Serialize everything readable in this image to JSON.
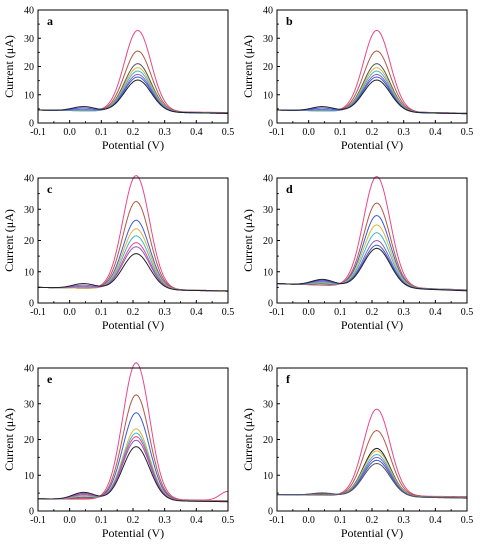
{
  "figure": {
    "background": "#ffffff"
  },
  "chart_data": [
    {
      "panel": "a",
      "type": "line",
      "xlabel": "Potential (V)",
      "ylabel": "Current (μA)",
      "xlim": [
        -0.1,
        0.5
      ],
      "ylim": [
        0,
        40
      ],
      "xticks": [
        "-0.1",
        "0.0",
        "0.1",
        "0.2",
        "0.3",
        "0.4",
        "0.5"
      ],
      "yticks": [
        "0",
        "10",
        "20",
        "30",
        "40"
      ],
      "peak_potential": 0.215,
      "series": [
        {
          "color": "#e8488b",
          "peak": 32.8,
          "base_left": 4.6,
          "base_right": 3.7,
          "shoulder": 0
        },
        {
          "color": "#b05a45",
          "peak": 25.5,
          "base_left": 4.6,
          "base_right": 3.6,
          "shoulder": 0
        },
        {
          "color": "#55555a",
          "peak": 21.0,
          "base_left": 4.6,
          "base_right": 3.5,
          "shoulder": 0
        },
        {
          "color": "#d6b83a",
          "peak": 19.6,
          "base_left": 4.6,
          "base_right": 3.5,
          "shoulder": 0
        },
        {
          "color": "#3fb7c9",
          "peak": 18.4,
          "base_left": 4.6,
          "base_right": 3.5,
          "shoulder": 0
        },
        {
          "color": "#8b5fc8",
          "peak": 17.2,
          "base_left": 4.6,
          "base_right": 3.4,
          "shoulder": 0.5
        },
        {
          "color": "#3b5bd9",
          "peak": 16.3,
          "base_left": 4.6,
          "base_right": 3.4,
          "shoulder": 1.0
        },
        {
          "color": "#222222",
          "peak": 15.2,
          "base_left": 4.6,
          "base_right": 3.4,
          "shoulder": 1.5
        }
      ]
    },
    {
      "panel": "b",
      "type": "line",
      "xlabel": "Potential (V)",
      "ylabel": "Current (μA)",
      "xlim": [
        -0.1,
        0.5
      ],
      "ylim": [
        0,
        40
      ],
      "xticks": [
        "-0.1",
        "0.0",
        "0.1",
        "0.2",
        "0.3",
        "0.4",
        "0.5"
      ],
      "yticks": [
        "0",
        "10",
        "20",
        "30",
        "40"
      ],
      "peak_potential": 0.215,
      "series": [
        {
          "color": "#e8488b",
          "peak": 32.8,
          "base_left": 4.6,
          "base_right": 3.5,
          "shoulder": 0
        },
        {
          "color": "#b05a45",
          "peak": 25.5,
          "base_left": 4.6,
          "base_right": 3.5,
          "shoulder": 0
        },
        {
          "color": "#55555a",
          "peak": 21.0,
          "base_left": 4.6,
          "base_right": 3.4,
          "shoulder": 0
        },
        {
          "color": "#d6b83a",
          "peak": 19.6,
          "base_left": 4.6,
          "base_right": 3.4,
          "shoulder": 0
        },
        {
          "color": "#3fb7c9",
          "peak": 18.4,
          "base_left": 4.6,
          "base_right": 3.4,
          "shoulder": 0
        },
        {
          "color": "#8b5fc8",
          "peak": 17.2,
          "base_left": 4.6,
          "base_right": 3.3,
          "shoulder": 0.5
        },
        {
          "color": "#3b5bd9",
          "peak": 16.3,
          "base_left": 4.6,
          "base_right": 3.3,
          "shoulder": 1.0
        },
        {
          "color": "#222222",
          "peak": 15.2,
          "base_left": 4.6,
          "base_right": 3.3,
          "shoulder": 1.5
        }
      ]
    },
    {
      "panel": "c",
      "type": "line",
      "xlabel": "Potential (V)",
      "ylabel": "Current (μA)",
      "xlim": [
        -0.1,
        0.5
      ],
      "ylim": [
        0,
        40
      ],
      "xticks": [
        "-0.1",
        "0.0",
        "0.1",
        "0.2",
        "0.3",
        "0.4",
        "0.5"
      ],
      "yticks": [
        "0",
        "10",
        "20",
        "30",
        "40"
      ],
      "peak_potential": 0.21,
      "series": [
        {
          "color": "#e8488b",
          "peak": 40.8,
          "base_left": 5.0,
          "base_right": 3.9,
          "shoulder": 0
        },
        {
          "color": "#b05a45",
          "peak": 32.5,
          "base_left": 5.0,
          "base_right": 3.9,
          "shoulder": 0
        },
        {
          "color": "#3b5bd9",
          "peak": 26.5,
          "base_left": 5.0,
          "base_right": 3.9,
          "shoulder": 0
        },
        {
          "color": "#d6b83a",
          "peak": 23.8,
          "base_left": 5.0,
          "base_right": 3.9,
          "shoulder": 0
        },
        {
          "color": "#3fb7c9",
          "peak": 21.5,
          "base_left": 5.0,
          "base_right": 3.8,
          "shoulder": 0.3
        },
        {
          "color": "#e8488b",
          "peak": 19.3,
          "base_left": 5.0,
          "base_right": 3.8,
          "shoulder": 0.6
        },
        {
          "color": "#8b5fc8",
          "peak": 18.0,
          "base_left": 5.0,
          "base_right": 3.8,
          "shoulder": 1.0
        },
        {
          "color": "#222222",
          "peak": 15.8,
          "base_left": 5.0,
          "base_right": 3.8,
          "shoulder": 1.5
        }
      ]
    },
    {
      "panel": "d",
      "type": "line",
      "xlabel": "Potential (V)",
      "ylabel": "Current (μA)",
      "xlim": [
        -0.1,
        0.5
      ],
      "ylim": [
        0,
        40
      ],
      "xticks": [
        "-0.1",
        "0.0",
        "0.1",
        "0.2",
        "0.3",
        "0.4",
        "0.5"
      ],
      "yticks": [
        "0",
        "10",
        "20",
        "30",
        "40"
      ],
      "peak_potential": 0.215,
      "series": [
        {
          "color": "#e8488b",
          "peak": 40.5,
          "base_left": 6.2,
          "base_right": 4.2,
          "shoulder": 0
        },
        {
          "color": "#b05a45",
          "peak": 32.0,
          "base_left": 6.2,
          "base_right": 4.2,
          "shoulder": 0
        },
        {
          "color": "#3b5bd9",
          "peak": 28.0,
          "base_left": 6.2,
          "base_right": 4.1,
          "shoulder": 0.5
        },
        {
          "color": "#d6b83a",
          "peak": 25.0,
          "base_left": 6.2,
          "base_right": 4.1,
          "shoulder": 0.7
        },
        {
          "color": "#3fb7c9",
          "peak": 22.5,
          "base_left": 6.2,
          "base_right": 4.0,
          "shoulder": 1.0
        },
        {
          "color": "#8b5fc8",
          "peak": 20.0,
          "base_left": 6.2,
          "base_right": 4.0,
          "shoulder": 1.3
        },
        {
          "color": "#3b5bd9",
          "peak": 18.5,
          "base_left": 6.2,
          "base_right": 4.0,
          "shoulder": 1.6
        },
        {
          "color": "#222222",
          "peak": 17.5,
          "base_left": 6.2,
          "base_right": 3.9,
          "shoulder": 1.9
        }
      ]
    },
    {
      "panel": "e",
      "type": "line",
      "xlabel": "Potential (V)",
      "ylabel": "Current (μA)",
      "xlim": [
        -0.1,
        0.5
      ],
      "ylim": [
        0,
        40
      ],
      "xticks": [
        "-0.1",
        "0.0",
        "0.1",
        "0.2",
        "0.3",
        "0.4",
        "0.5"
      ],
      "yticks": [
        "0",
        "10",
        "20",
        "30",
        "40"
      ],
      "peak_potential": 0.21,
      "series": [
        {
          "color": "#e8488b",
          "peak": 41.5,
          "base_left": 3.4,
          "base_right": 3.0,
          "shoulder": 0,
          "tail_up": 2.5
        },
        {
          "color": "#b05a45",
          "peak": 32.5,
          "base_left": 3.4,
          "base_right": 2.9,
          "shoulder": 0.3,
          "tail_up": 0
        },
        {
          "color": "#3b5bd9",
          "peak": 27.5,
          "base_left": 3.4,
          "base_right": 2.8,
          "shoulder": 0.6,
          "tail_up": 0
        },
        {
          "color": "#d6b83a",
          "peak": 23.0,
          "base_left": 3.4,
          "base_right": 2.8,
          "shoulder": 0.9,
          "tail_up": 0
        },
        {
          "color": "#3fb7c9",
          "peak": 21.8,
          "base_left": 3.4,
          "base_right": 2.7,
          "shoulder": 1.2,
          "tail_up": 0
        },
        {
          "color": "#e8488b",
          "peak": 20.8,
          "base_left": 3.4,
          "base_right": 2.7,
          "shoulder": 1.4,
          "tail_up": 0
        },
        {
          "color": "#8b5fc8",
          "peak": 19.8,
          "base_left": 3.4,
          "base_right": 2.6,
          "shoulder": 1.7,
          "tail_up": 0
        },
        {
          "color": "#222222",
          "peak": 18.0,
          "base_left": 3.4,
          "base_right": 2.6,
          "shoulder": 2.0,
          "tail_up": 0
        }
      ]
    },
    {
      "panel": "f",
      "type": "line",
      "xlabel": "Potential (V)",
      "ylabel": "Current (μA)",
      "xlim": [
        -0.1,
        0.5
      ],
      "ylim": [
        0,
        40
      ],
      "xticks": [
        "-0.1",
        "0.0",
        "0.1",
        "0.2",
        "0.3",
        "0.4",
        "0.5"
      ],
      "yticks": [
        "0",
        "10",
        "20",
        "30",
        "40"
      ],
      "peak_potential": 0.215,
      "series": [
        {
          "color": "#e8488b",
          "peak": 28.5,
          "base_left": 4.6,
          "base_right": 4.0,
          "shoulder": 0
        },
        {
          "color": "#b05a45",
          "peak": 22.5,
          "base_left": 4.6,
          "base_right": 3.9,
          "shoulder": 0
        },
        {
          "color": "#222222",
          "peak": 17.5,
          "base_left": 4.6,
          "base_right": 3.8,
          "shoulder": 0.2
        },
        {
          "color": "#d6b83a",
          "peak": 16.8,
          "base_left": 4.6,
          "base_right": 3.8,
          "shoulder": 0.3
        },
        {
          "color": "#3fb7c9",
          "peak": 15.8,
          "base_left": 4.6,
          "base_right": 3.7,
          "shoulder": 0.4
        },
        {
          "color": "#8b5fc8",
          "peak": 15.0,
          "base_left": 4.6,
          "base_right": 3.7,
          "shoulder": 0.5
        },
        {
          "color": "#3b5bd9",
          "peak": 14.2,
          "base_left": 4.6,
          "base_right": 3.6,
          "shoulder": 0.6
        },
        {
          "color": "#555555",
          "peak": 13.3,
          "base_left": 4.6,
          "base_right": 3.6,
          "shoulder": 0.7
        }
      ]
    }
  ]
}
